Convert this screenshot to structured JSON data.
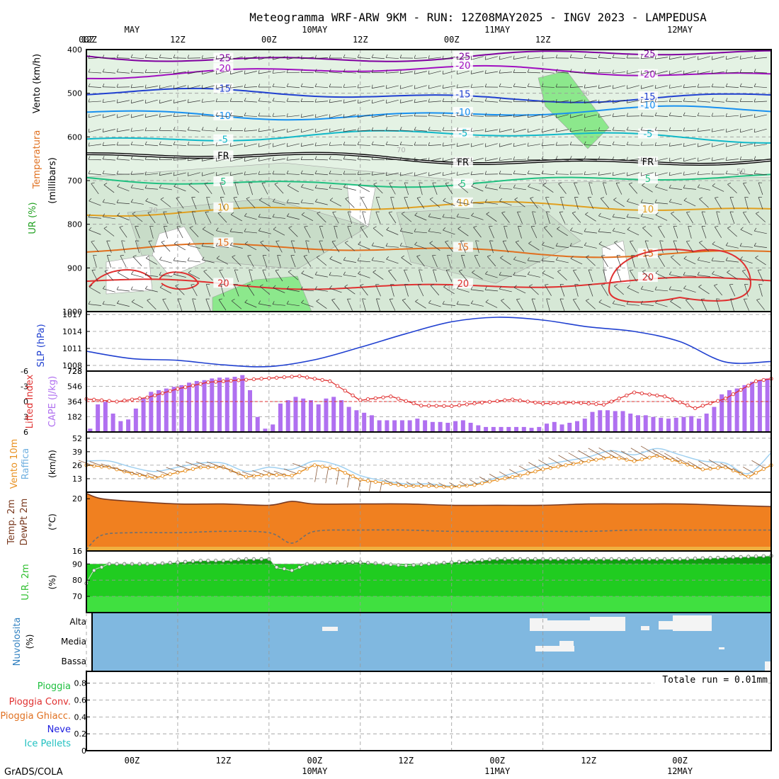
{
  "title": "Meteogramma WRF-ARW 9KM - RUN: 12Z08MAY2025 - INGV 2023 - LAMPEDUSA",
  "footer": "GrADS/COLA",
  "time_axis": {
    "hours": [
      -12,
      0,
      12,
      24,
      36,
      48,
      60
    ],
    "labels": [
      "12Z",
      "00Z",
      "12Z",
      "00Z",
      "12Z",
      "00Z",
      "12Z"
    ],
    "top_dates": [
      "MAY",
      "10MAY",
      "11MAY",
      "12MAY"
    ],
    "bottom_labels": [
      "00Z",
      "12Z",
      "00Z",
      "12Z",
      "00Z",
      "12Z",
      "00Z"
    ],
    "bottom_dates": [
      "10MAY",
      "11MAY",
      "12MAY"
    ],
    "range_hours": [
      0,
      90
    ]
  },
  "colors": {
    "frame": "#000000",
    "grid": "#999999",
    "slp": "#2040d0",
    "lifted": "#e03030",
    "cape": "#b070f0",
    "wind": "#e89020",
    "gust": "#a0d0f0",
    "temp_fill": "#f08020",
    "dew": "#707070",
    "rh_dark": "#10a010",
    "rh_mid": "#20cc20",
    "rh_light": "#40e040",
    "cloud_bg": "#80b8e0",
    "cloud_white": "#f4f4f4"
  },
  "panels": {
    "upper": {
      "labels": [
        "Vento (km/h)",
        "Temperatura",
        "UR (%)"
      ],
      "ylabel": "(millibars)",
      "yticks": [
        "400",
        "500",
        "600",
        "700",
        "800",
        "900",
        "1000"
      ],
      "isotherms": [
        {
          "label": "-25",
          "color": "#8000a0",
          "p": 415
        },
        {
          "label": "-20",
          "color": "#a010c0",
          "p": 452
        },
        {
          "label": "-15",
          "color": "#2040d0",
          "p": 505
        },
        {
          "label": "-10",
          "color": "#1890f0",
          "p": 545
        },
        {
          "label": "-5",
          "color": "#10b8c8",
          "p": 600
        },
        {
          "label": "FR",
          "color": "#000000",
          "p": 650
        },
        {
          "label": "5",
          "color": "#20c080",
          "p": 700
        },
        {
          "label": "10",
          "color": "#e0a020",
          "p": 765
        },
        {
          "label": "15",
          "color": "#e07020",
          "p": 860
        },
        {
          "label": "20",
          "color": "#e03030",
          "p": 935
        }
      ],
      "rh_labels": [
        "30",
        "50",
        "70"
      ]
    },
    "slp": {
      "label": "SLP (hPa)",
      "yticks": [
        "1008",
        "1011",
        "1014",
        "1017"
      ],
      "ylim": [
        1007,
        1017.5
      ]
    },
    "cape": {
      "label_left": "Lifted Index",
      "label_right": "CAPE (J/kg)",
      "li_ticks": [
        "-6",
        "-3",
        "0",
        "3",
        "6"
      ],
      "cape_ticks": [
        "182",
        "364",
        "546",
        "728"
      ]
    },
    "wind": {
      "label_a": "Vento 10m",
      "label_b": "Raffica",
      "unit": "(km/h)",
      "yticks": [
        "13",
        "26",
        "39",
        "52"
      ]
    },
    "temp": {
      "label_a": "Temp. 2m",
      "label_b": "DewPt 2m",
      "unit": "(°C)",
      "yticks": [
        "16",
        "20"
      ]
    },
    "rh": {
      "label": "U.R. 2m",
      "unit": "(%)",
      "yticks": [
        "70",
        "80",
        "90"
      ]
    },
    "clouds": {
      "label": "Nuvolosita",
      "unit": "(%)",
      "levels": [
        "Alta",
        "Media",
        "Bassa"
      ]
    },
    "precip": {
      "labels": [
        "Pioggia",
        "Pioggia Conv.",
        "Pioggia Ghiacc.",
        "Neve",
        "Ice Pellets"
      ],
      "label_colors": [
        "#20c040",
        "#e03030",
        "#e07020",
        "#2020e0",
        "#20c0c0"
      ],
      "total": "Totale run = 0.01mm",
      "yticks": [
        "0",
        "0.2",
        "0.4",
        "0.6",
        "0.8"
      ]
    }
  },
  "chart_data": [
    {
      "type": "line",
      "name": "slp",
      "ylabel": "SLP (hPa)",
      "x_hours": [
        0,
        6,
        12,
        18,
        24,
        30,
        36,
        42,
        48,
        54,
        60,
        66,
        72,
        78,
        84,
        90
      ],
      "values": [
        1010.5,
        1009.2,
        1008.9,
        1008.1,
        1007.8,
        1009.0,
        1011.2,
        1013.6,
        1015.7,
        1016.5,
        1016.0,
        1014.8,
        1014.0,
        1012.2,
        1008.6,
        1008.7
      ],
      "ylim": [
        1007,
        1017.5
      ]
    },
    {
      "type": "bar",
      "name": "cape",
      "ylabel": "CAPE (J/kg)",
      "values": [
        40,
        330,
        360,
        220,
        130,
        150,
        280,
        400,
        480,
        500,
        520,
        540,
        560,
        590,
        610,
        620,
        640,
        650,
        650,
        660,
        680,
        500,
        180,
        40,
        90,
        340,
        380,
        420,
        400,
        380,
        330,
        400,
        420,
        380,
        300,
        260,
        230,
        200,
        140,
        140,
        140,
        140,
        140,
        160,
        140,
        120,
        120,
        110,
        130,
        140,
        110,
        80,
        60,
        60,
        60,
        60,
        60,
        60,
        50,
        60,
        100,
        120,
        90,
        110,
        130,
        160,
        240,
        260,
        260,
        250,
        250,
        220,
        200,
        200,
        180,
        170,
        160,
        170,
        180,
        190,
        160,
        220,
        300,
        450,
        500,
        520,
        560,
        600,
        620,
        640
      ],
      "ylim": [
        0,
        728
      ]
    },
    {
      "type": "line",
      "name": "lifted_index",
      "ylabel": "Lifted Index",
      "x_hours": [
        0,
        4,
        8,
        12,
        16,
        20,
        24,
        28,
        32,
        36,
        40,
        44,
        48,
        52,
        56,
        60,
        64,
        68,
        72,
        76,
        80,
        84,
        88,
        90
      ],
      "values": [
        -0.5,
        0.0,
        -0.8,
        -2.5,
        -3.8,
        -4.2,
        -4.6,
        -5.0,
        -4.0,
        -0.3,
        -1.0,
        0.8,
        0.9,
        0.2,
        -0.4,
        0.4,
        0.2,
        0.6,
        -1.8,
        -1.0,
        1.3,
        -0.6,
        -4.0,
        -4.5
      ],
      "ylim": [
        6,
        -6
      ]
    },
    {
      "type": "line",
      "name": "wind_10m",
      "ylabel": "(km/h)",
      "x_hours": [
        0,
        3,
        6,
        9,
        12,
        15,
        18,
        21,
        24,
        27,
        30,
        33,
        36,
        39,
        42,
        45,
        48,
        51,
        54,
        57,
        60,
        63,
        66,
        69,
        72,
        75,
        78,
        81,
        84,
        87,
        90
      ],
      "values": [
        26,
        24,
        18,
        14,
        19,
        24,
        24,
        15,
        17,
        16,
        26,
        22,
        12,
        9,
        6,
        6,
        5,
        7,
        12,
        16,
        22,
        26,
        30,
        34,
        30,
        35,
        29,
        22,
        24,
        15,
        26
      ],
      "gust": [
        30,
        30,
        24,
        20,
        24,
        28,
        28,
        20,
        24,
        22,
        30,
        26,
        16,
        11,
        8,
        8,
        6,
        8,
        14,
        20,
        26,
        30,
        34,
        40,
        36,
        42,
        36,
        30,
        28,
        18,
        38
      ],
      "ylim": [
        0,
        58
      ]
    },
    {
      "type": "area",
      "name": "temperature",
      "ylabel": "(°C)",
      "x_hours": [
        0,
        2,
        6,
        12,
        18,
        24,
        27,
        30,
        36,
        42,
        48,
        54,
        60,
        66,
        72,
        78,
        84,
        90
      ],
      "temp": [
        20.4,
        20.0,
        19.8,
        19.6,
        19.6,
        19.5,
        19.8,
        19.6,
        19.6,
        19.6,
        19.5,
        19.5,
        19.5,
        19.6,
        19.6,
        19.6,
        19.5,
        19.4
      ],
      "dewpoint": [
        16.1,
        17.2,
        17.4,
        17.4,
        17.5,
        17.4,
        16.6,
        17.5,
        17.6,
        17.6,
        17.5,
        17.5,
        17.5,
        17.5,
        17.6,
        17.6,
        17.6,
        17.6
      ],
      "ylim": [
        16,
        20.5
      ]
    },
    {
      "type": "area",
      "name": "rh_2m",
      "ylabel": "(%)",
      "x_hours": [
        0,
        1,
        3,
        6,
        9,
        12,
        15,
        18,
        21,
        24,
        25,
        27,
        29,
        33,
        36,
        39,
        42,
        45,
        48,
        51,
        54,
        60,
        66,
        72,
        78,
        84,
        90
      ],
      "values": [
        78,
        86,
        90,
        90,
        90,
        91,
        92,
        92,
        93,
        93,
        88,
        86,
        90,
        91,
        91,
        90,
        89,
        90,
        91,
        92,
        93,
        93,
        93,
        93,
        93,
        94,
        95
      ],
      "ylim": [
        60,
        98
      ]
    }
  ]
}
